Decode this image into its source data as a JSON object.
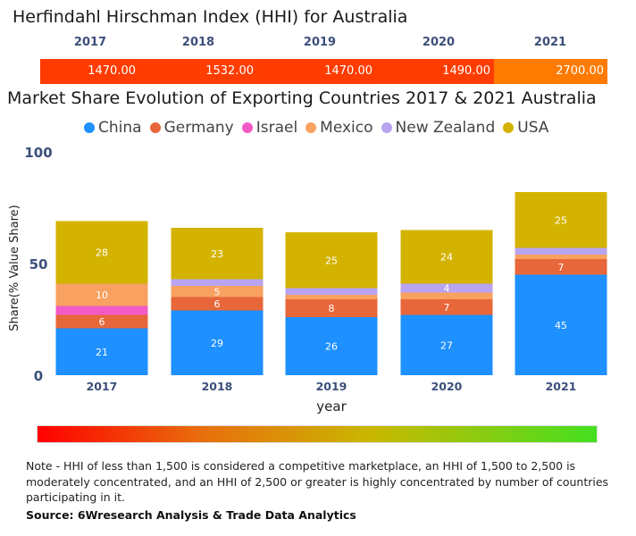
{
  "hhi": {
    "title": "Herfindahl Hirschman Index (HHI) for Australia",
    "entries": [
      {
        "year": "2017",
        "value": "1470.00",
        "color": "#ff3b00"
      },
      {
        "year": "2018",
        "value": "1532.00",
        "color": "#ff3d00"
      },
      {
        "year": "2019",
        "value": "1470.00",
        "color": "#ff3b00"
      },
      {
        "year": "2020",
        "value": "1490.00",
        "color": "#ff3c00"
      },
      {
        "year": "2021",
        "value": "2700.00",
        "color": "#ff7a00"
      }
    ]
  },
  "chart_title": "Market Share Evolution of Exporting Countries 2017 & 2021 Australia",
  "legend": [
    {
      "name": "China",
      "color": "#1e90ff"
    },
    {
      "name": "Germany",
      "color": "#e8673a"
    },
    {
      "name": "Israel",
      "color": "#f25bc6"
    },
    {
      "name": "Mexico",
      "color": "#f8a160"
    },
    {
      "name": "New Zealand",
      "color": "#b8a4f0"
    },
    {
      "name": "USA",
      "color": "#d4b300"
    }
  ],
  "chart_data": {
    "type": "bar",
    "stacked": true,
    "categories": [
      "2017",
      "2018",
      "2019",
      "2020",
      "2021"
    ],
    "series": [
      {
        "name": "China",
        "values": [
          21,
          29,
          26,
          27,
          45
        ],
        "labels": [
          "21",
          "29",
          "26",
          "27",
          "45"
        ]
      },
      {
        "name": "Germany",
        "values": [
          6,
          6,
          8,
          7,
          7
        ],
        "labels": [
          "6",
          "6",
          "8",
          "7",
          "7"
        ]
      },
      {
        "name": "Israel",
        "values": [
          4,
          0,
          0,
          0,
          0
        ],
        "labels": [
          "",
          "",
          "",
          "",
          ""
        ]
      },
      {
        "name": "Mexico",
        "values": [
          10,
          5,
          2,
          3,
          2
        ],
        "labels": [
          "10",
          "5",
          "",
          "",
          ""
        ]
      },
      {
        "name": "New Zealand",
        "values": [
          0,
          3,
          3,
          4,
          3
        ],
        "labels": [
          "",
          "",
          "",
          "4",
          ""
        ]
      },
      {
        "name": "USA",
        "values": [
          28,
          23,
          25,
          24,
          25
        ],
        "labels": [
          "28",
          "23",
          "25",
          "24",
          "25"
        ]
      }
    ],
    "xlabel": "year",
    "ylabel": "Share(% Value Share)",
    "ylim": [
      0,
      100
    ],
    "yticks": [
      "0",
      "50",
      "100"
    ]
  },
  "note": "Note - HHI of less than 1,500 is considered a competitive marketplace, an HHI of 1,500 to 2,500 is moderately concentrated, and an HHI of 2,500 or greater is highly concentrated by number of countries participating in it.",
  "source": "Source: 6Wresearch Analysis & Trade Data Analytics"
}
